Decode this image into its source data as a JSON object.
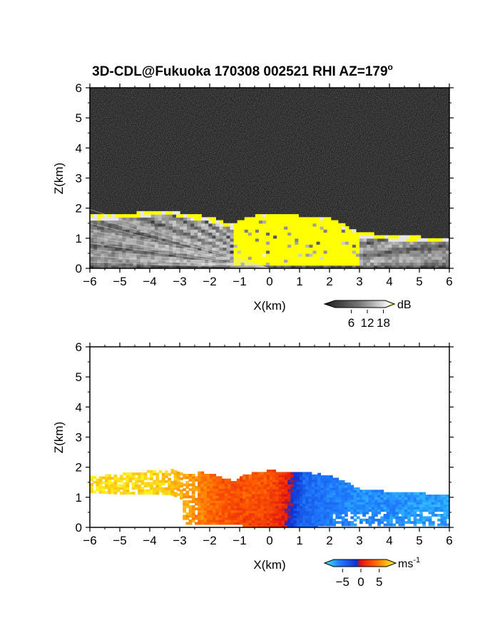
{
  "title": "3D-CDL@Fukuoka 170308 002521 RHI AZ=179",
  "title_superscript": "o",
  "chart_data": [
    {
      "type": "heatmap",
      "name": "reflectivity",
      "xlabel": "X(km)",
      "ylabel": "Z(km)",
      "xlim": [
        -6,
        6
      ],
      "ylim": [
        0,
        6
      ],
      "xticks": [
        -6,
        -5,
        -4,
        -3,
        -2,
        -1,
        0,
        1,
        2,
        3,
        4,
        5,
        6
      ],
      "yticks": [
        0,
        1,
        2,
        3,
        4,
        5,
        6
      ],
      "background": "noise (dark gray)",
      "colormap": "grayscale, yellow above 18",
      "colorbar": {
        "unit": "dB",
        "ticks": [
          6,
          12,
          18
        ],
        "range": [
          0,
          20
        ],
        "over_color": "#ffff00"
      },
      "echo_top_profile": {
        "x": [
          -6,
          -5,
          -4,
          -3.3,
          -3,
          -2,
          -1.2,
          -1,
          -0.5,
          0,
          0.5,
          1,
          2,
          2.5,
          3,
          3.5,
          4,
          5,
          6
        ],
        "z": [
          1.7,
          1.75,
          1.85,
          1.9,
          1.8,
          1.65,
          1.4,
          1.55,
          1.7,
          1.75,
          1.72,
          1.7,
          1.6,
          1.4,
          1.15,
          1.1,
          1.05,
          1.0,
          0.95
        ]
      },
      "yellow_region_x": [
        -1.2,
        2.9
      ]
    },
    {
      "type": "heatmap",
      "name": "doppler_velocity",
      "xlabel": "X(km)",
      "ylabel": "Z(km)",
      "xlim": [
        -6,
        6
      ],
      "ylim": [
        0,
        6
      ],
      "xticks": [
        -6,
        -5,
        -4,
        -3,
        -2,
        -1,
        0,
        1,
        2,
        3,
        4,
        5,
        6
      ],
      "yticks": [
        0,
        1,
        2,
        3,
        4,
        5,
        6
      ],
      "background": "white (no data)",
      "colormap": "cyan-blue-red-orange-yellow",
      "colorbar": {
        "unit": "ms",
        "unit_exponent": "-1",
        "ticks": [
          -5,
          0,
          5
        ],
        "range": [
          -7,
          7
        ]
      },
      "velocity_by_x": {
        "x": [
          -6,
          -4,
          -3,
          -2,
          -1,
          0,
          0.5,
          1,
          2,
          3,
          4,
          5,
          6
        ],
        "v": [
          6,
          6,
          5,
          3,
          2,
          1.5,
          0,
          -3,
          -4,
          -4.5,
          -4.5,
          -5,
          -5
        ]
      }
    }
  ]
}
